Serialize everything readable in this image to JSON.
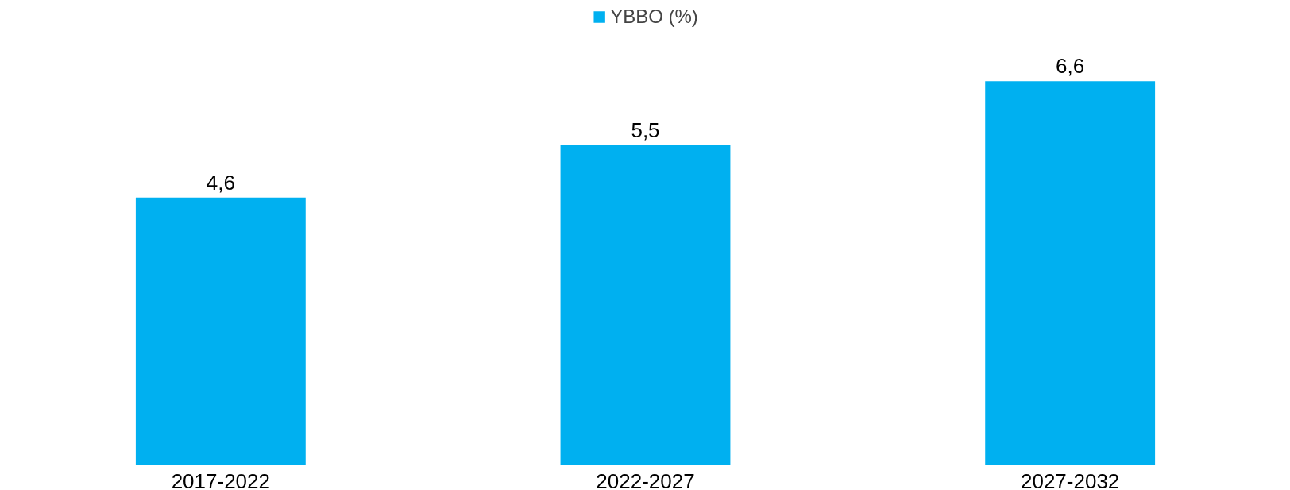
{
  "chart_data": {
    "type": "bar",
    "categories": [
      "2017-2022",
      "2022-2027",
      "2027-2032"
    ],
    "series": [
      {
        "name": "YBBO (%)",
        "color": "#00b0f0",
        "values": [
          4.6,
          5.5,
          6.6
        ],
        "value_labels": [
          "4,6",
          "5,5",
          "6,6"
        ]
      }
    ],
    "legend": "top",
    "grid": false
  }
}
